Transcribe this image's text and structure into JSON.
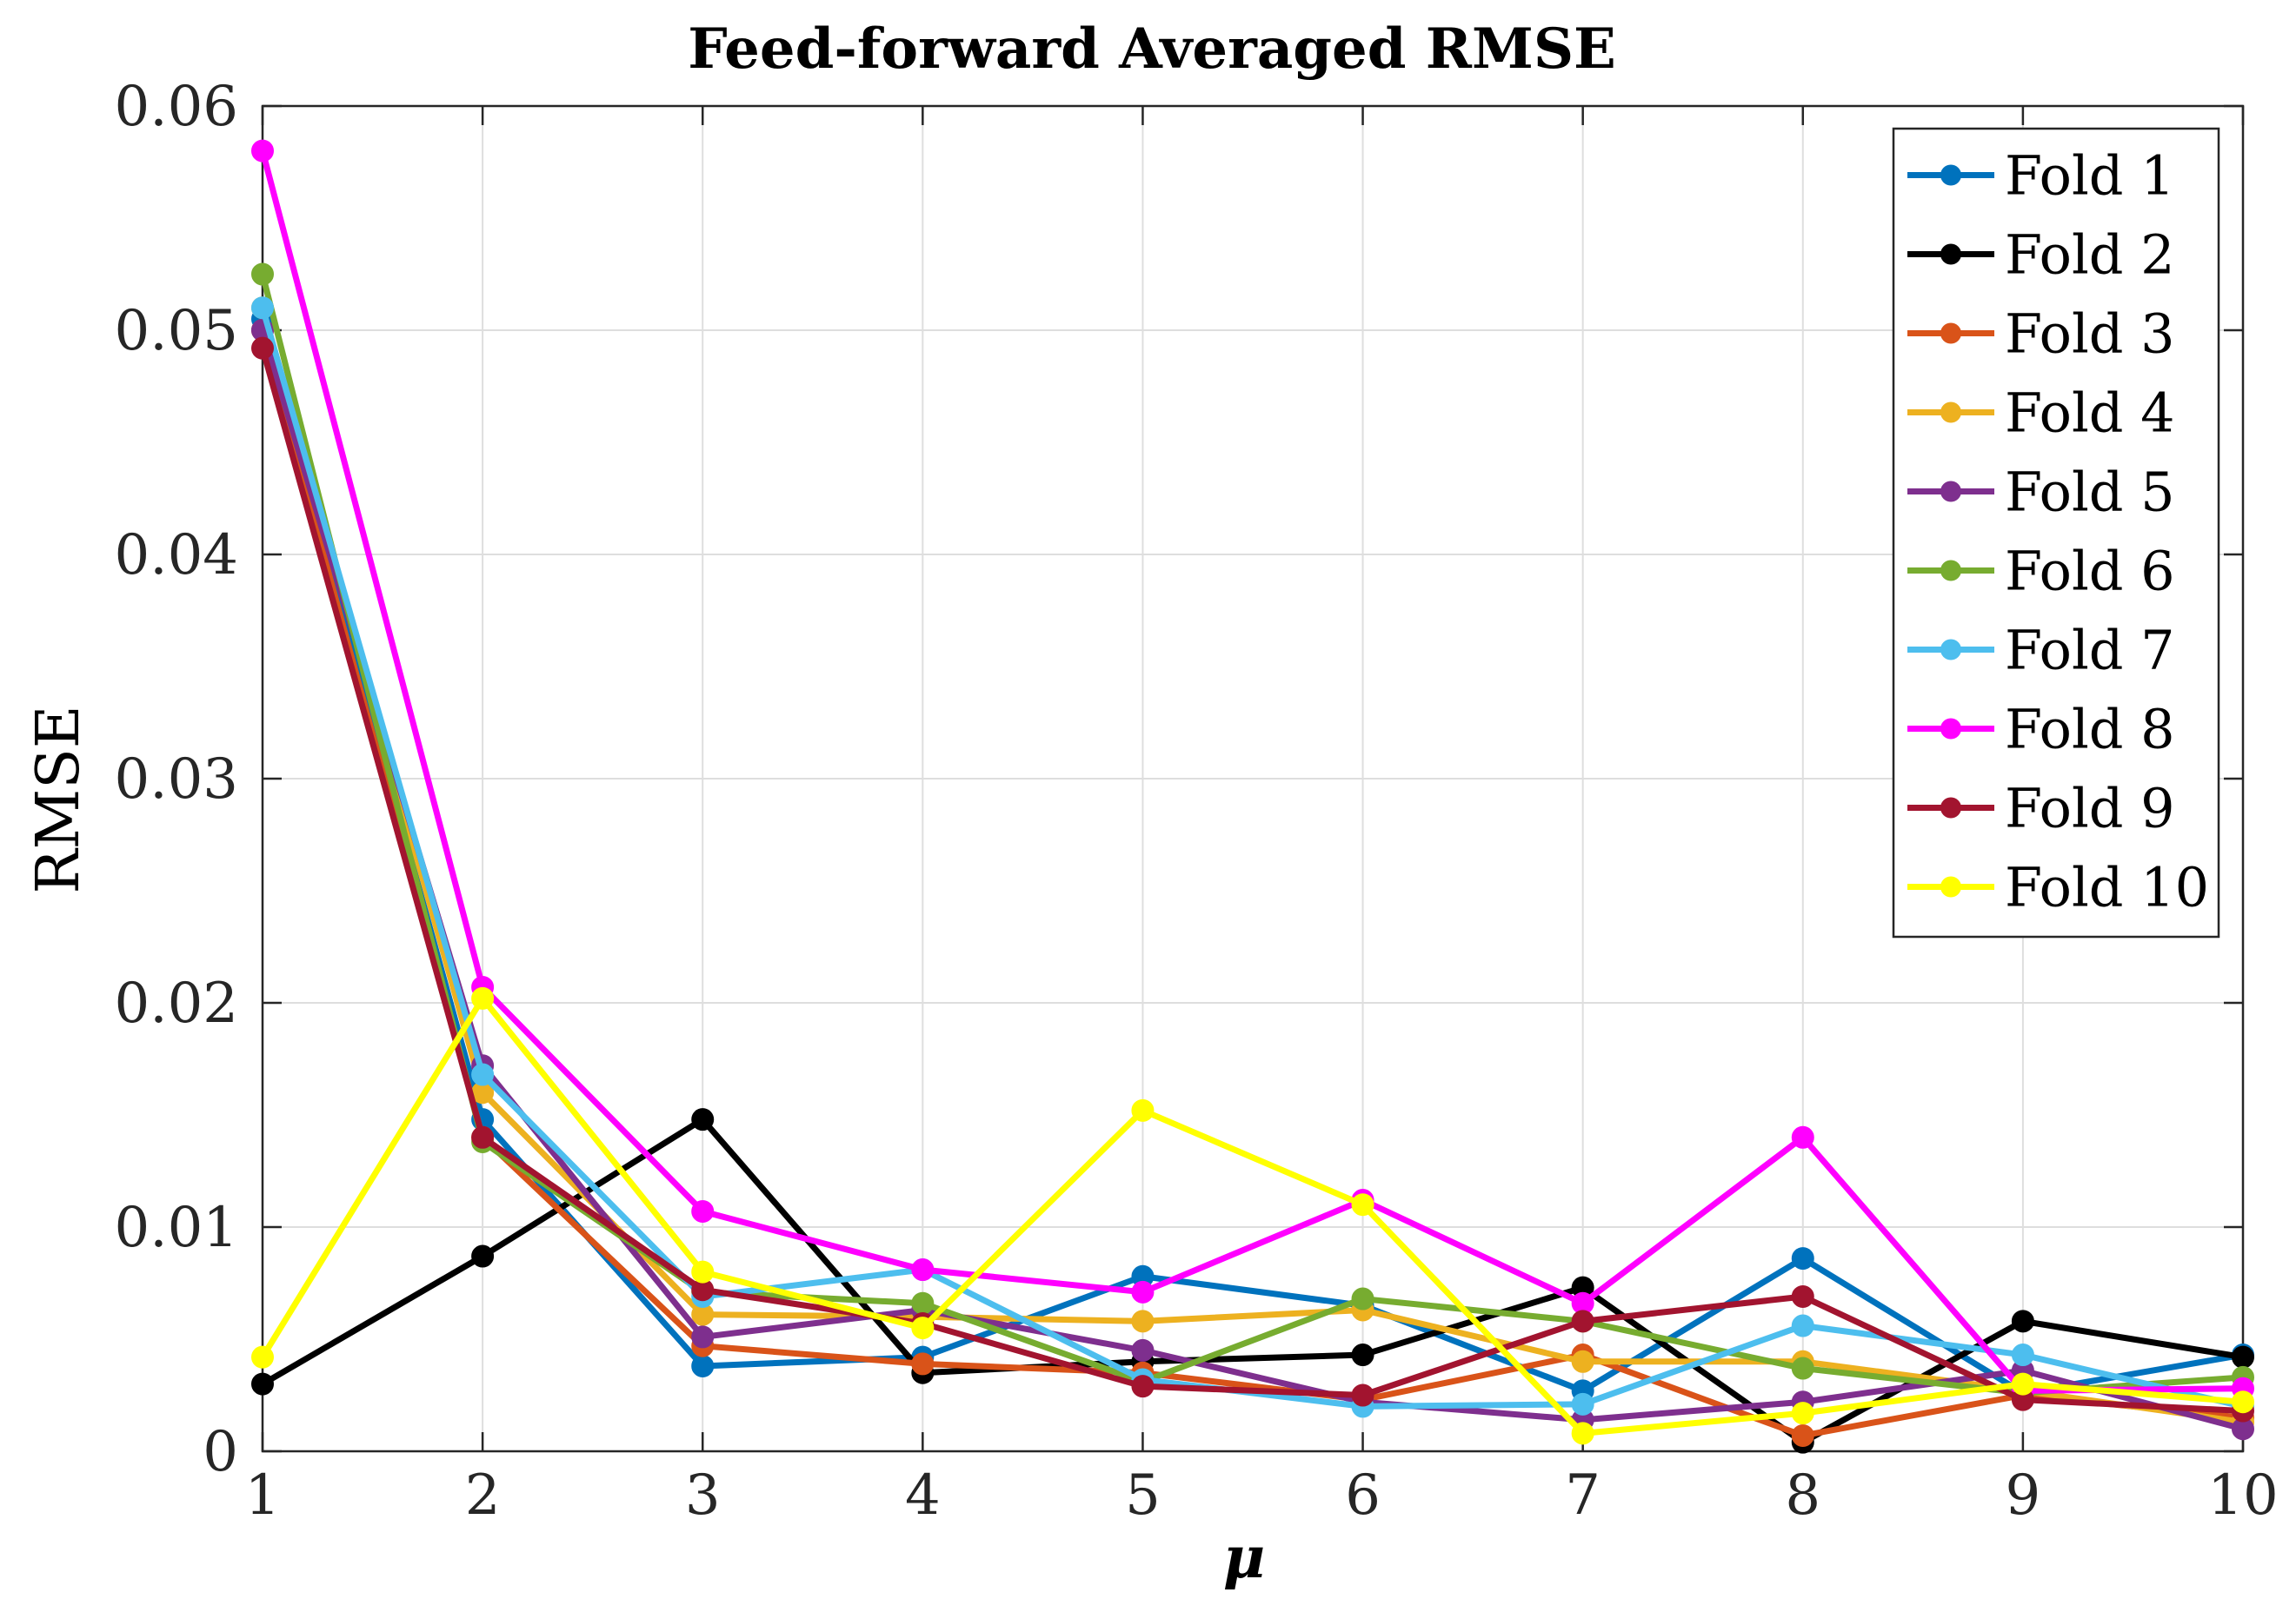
{
  "chart_data": {
    "type": "line",
    "title": "Feed-forward Averaged RMSE",
    "xlabel": "μ",
    "ylabel": "RMSE",
    "x": [
      1,
      2,
      3,
      4,
      5,
      6,
      7,
      8,
      9,
      10
    ],
    "xlim": [
      1,
      10
    ],
    "ylim": [
      0,
      0.06
    ],
    "xticks": [
      1,
      2,
      3,
      4,
      5,
      6,
      7,
      8,
      9,
      10
    ],
    "yticks": [
      0,
      0.01,
      0.02,
      0.03,
      0.04,
      0.05,
      0.06
    ],
    "xtick_labels": [
      "1",
      "2",
      "3",
      "4",
      "5",
      "6",
      "7",
      "8",
      "9",
      "10"
    ],
    "ytick_labels": [
      "0",
      "0.01",
      "0.02",
      "0.03",
      "0.04",
      "0.05",
      "0.06"
    ],
    "grid": true,
    "legend_position": "top-right",
    "series": [
      {
        "name": "Fold 1",
        "color": "#0072BD",
        "values": [
          0.0505,
          0.0148,
          0.0038,
          0.0042,
          0.0078,
          0.0065,
          0.0027,
          0.0086,
          0.0026,
          0.0043
        ]
      },
      {
        "name": "Fold 2",
        "color": "#000000",
        "values": [
          0.003,
          0.0087,
          0.0148,
          0.0035,
          0.004,
          0.0043,
          0.0073,
          0.0004,
          0.0058,
          0.0042
        ]
      },
      {
        "name": "Fold 3",
        "color": "#D95319",
        "values": [
          0.05,
          0.014,
          0.0047,
          0.0039,
          0.0035,
          0.0023,
          0.0043,
          0.0007,
          0.0025,
          0.0015
        ]
      },
      {
        "name": "Fold 4",
        "color": "#EDB120",
        "values": [
          0.051,
          0.016,
          0.0061,
          0.006,
          0.0058,
          0.0063,
          0.004,
          0.004,
          0.0027,
          0.0013
        ]
      },
      {
        "name": "Fold 5",
        "color": "#7E2F8E",
        "values": [
          0.05,
          0.0172,
          0.0051,
          0.0063,
          0.0045,
          0.0022,
          0.0014,
          0.0022,
          0.0036,
          0.001
        ]
      },
      {
        "name": "Fold 6",
        "color": "#77AC30",
        "values": [
          0.0525,
          0.0138,
          0.0071,
          0.0066,
          0.0031,
          0.0068,
          0.0058,
          0.0037,
          0.0026,
          0.0033
        ]
      },
      {
        "name": "Fold 7",
        "color": "#4DBEEE",
        "values": [
          0.051,
          0.0168,
          0.0069,
          0.0081,
          0.0032,
          0.002,
          0.0021,
          0.0056,
          0.0043,
          0.002
        ]
      },
      {
        "name": "Fold 8",
        "color": "#FF00FF",
        "values": [
          0.058,
          0.0207,
          0.0107,
          0.0081,
          0.0071,
          0.0112,
          0.0066,
          0.014,
          0.0027,
          0.0028
        ]
      },
      {
        "name": "Fold 9",
        "color": "#A2142F",
        "values": [
          0.0492,
          0.014,
          0.0072,
          0.0057,
          0.0029,
          0.0025,
          0.0058,
          0.0069,
          0.0023,
          0.0018
        ]
      },
      {
        "name": "Fold 10",
        "color": "#FFFF00",
        "values": [
          0.0042,
          0.0202,
          0.008,
          0.0055,
          0.0152,
          0.011,
          0.0008,
          0.0017,
          0.003,
          0.0022
        ]
      }
    ]
  }
}
